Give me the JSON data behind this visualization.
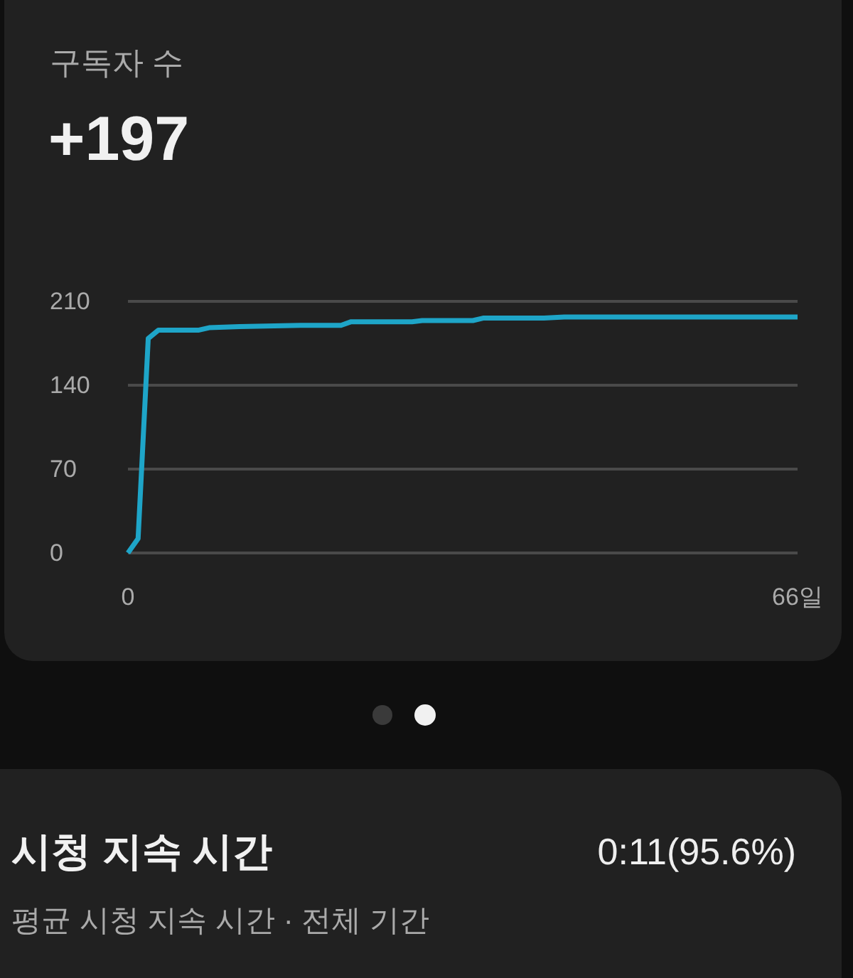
{
  "chart_data": [
    {
      "type": "line",
      "title": "구독자 수",
      "subtitle": "+197",
      "x": [
        0,
        1,
        2,
        3,
        7,
        8,
        11,
        17,
        21,
        22,
        28,
        29,
        34,
        35,
        41,
        43,
        66
      ],
      "xlim": [
        0,
        66
      ],
      "xticks": [
        0,
        {
          "value": 66,
          "label": "66일"
        }
      ],
      "ylim": [
        0,
        210
      ],
      "yticks": [
        0,
        70,
        140,
        210
      ],
      "grid": "y",
      "series": [
        {
          "color": "#1ea5c8",
          "values": [
            0,
            12,
            179,
            186,
            186,
            188,
            189,
            190,
            190,
            193,
            193,
            194,
            194,
            196,
            196,
            197,
            197
          ]
        }
      ]
    },
    {
      "type": "other",
      "title": "시청 지속 시간",
      "annotations": [
        "0:11(95.6%)",
        "평균 시청 지속 시간 · 전체 기간"
      ]
    }
  ]
}
